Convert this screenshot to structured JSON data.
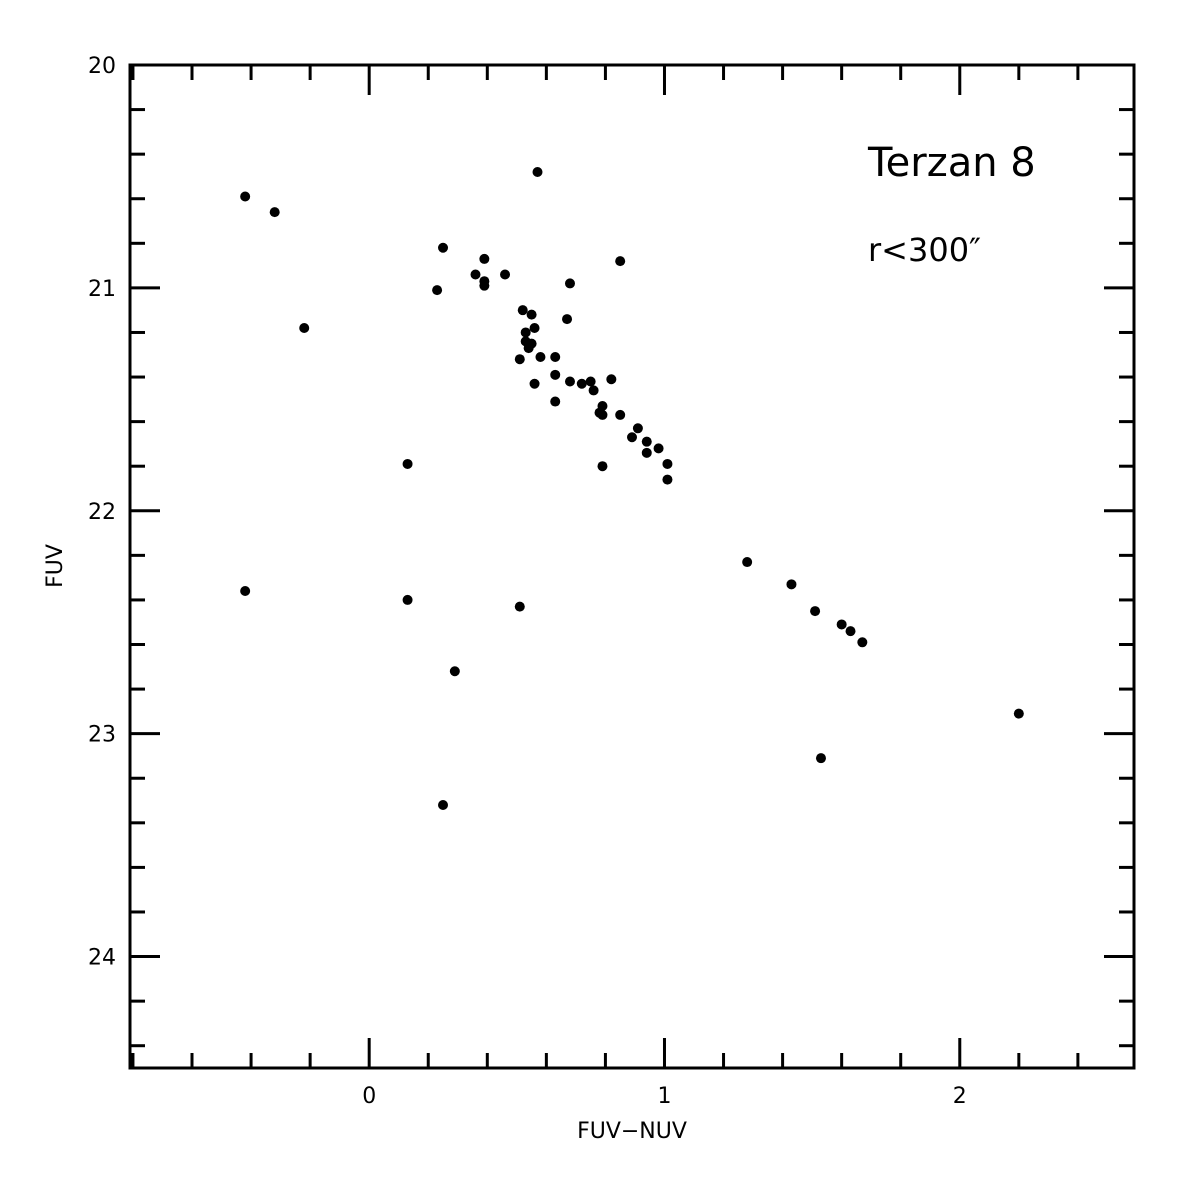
{
  "chart_data": {
    "type": "scatter",
    "xlabel": "FUV−NUV",
    "ylabel": "FUV",
    "xlim": [
      -0.81,
      2.59
    ],
    "ylim": [
      20,
      24.5
    ],
    "y_inverted": true,
    "grid": false,
    "x_major_ticks": [
      0,
      1,
      2
    ],
    "x_tick_labels": [
      "0",
      "1",
      "2"
    ],
    "y_major_ticks": [
      20,
      21,
      22,
      23,
      24
    ],
    "y_tick_labels": [
      "20",
      "21",
      "22",
      "23",
      "24"
    ],
    "annotations": [
      "Terzan 8",
      "r<300″"
    ],
    "series": [
      {
        "color": "#000000",
        "points": [
          [
            -0.42,
            20.59
          ],
          [
            -0.32,
            20.66
          ],
          [
            -0.22,
            21.18
          ],
          [
            0.13,
            21.79
          ],
          [
            -0.42,
            22.36
          ],
          [
            0.13,
            22.4
          ],
          [
            0.29,
            22.72
          ],
          [
            0.25,
            23.32
          ],
          [
            0.57,
            20.48
          ],
          [
            0.25,
            20.82
          ],
          [
            0.39,
            20.87
          ],
          [
            0.36,
            20.94
          ],
          [
            0.39,
            20.97
          ],
          [
            0.46,
            20.94
          ],
          [
            0.39,
            20.99
          ],
          [
            0.23,
            21.01
          ],
          [
            0.68,
            20.98
          ],
          [
            0.85,
            20.88
          ],
          [
            0.52,
            21.1
          ],
          [
            0.55,
            21.12
          ],
          [
            0.67,
            21.14
          ],
          [
            0.56,
            21.18
          ],
          [
            0.53,
            21.2
          ],
          [
            0.53,
            21.24
          ],
          [
            0.55,
            21.25
          ],
          [
            0.54,
            21.27
          ],
          [
            0.58,
            21.31
          ],
          [
            0.63,
            21.31
          ],
          [
            0.51,
            21.32
          ],
          [
            0.63,
            21.39
          ],
          [
            0.82,
            21.41
          ],
          [
            0.68,
            21.42
          ],
          [
            0.72,
            21.43
          ],
          [
            0.75,
            21.42
          ],
          [
            0.56,
            21.43
          ],
          [
            0.76,
            21.46
          ],
          [
            0.63,
            21.51
          ],
          [
            0.79,
            21.53
          ],
          [
            0.78,
            21.56
          ],
          [
            0.79,
            21.57
          ],
          [
            0.85,
            21.57
          ],
          [
            0.91,
            21.63
          ],
          [
            0.89,
            21.67
          ],
          [
            0.94,
            21.69
          ],
          [
            0.98,
            21.72
          ],
          [
            0.94,
            21.74
          ],
          [
            1.01,
            21.79
          ],
          [
            0.79,
            21.8
          ],
          [
            1.01,
            21.86
          ],
          [
            0.51,
            22.43
          ],
          [
            1.28,
            22.23
          ],
          [
            1.43,
            22.33
          ],
          [
            1.51,
            22.45
          ],
          [
            1.6,
            22.51
          ],
          [
            1.63,
            22.54
          ],
          [
            1.67,
            22.59
          ],
          [
            2.2,
            22.91
          ],
          [
            1.53,
            23.11
          ]
        ]
      }
    ]
  }
}
